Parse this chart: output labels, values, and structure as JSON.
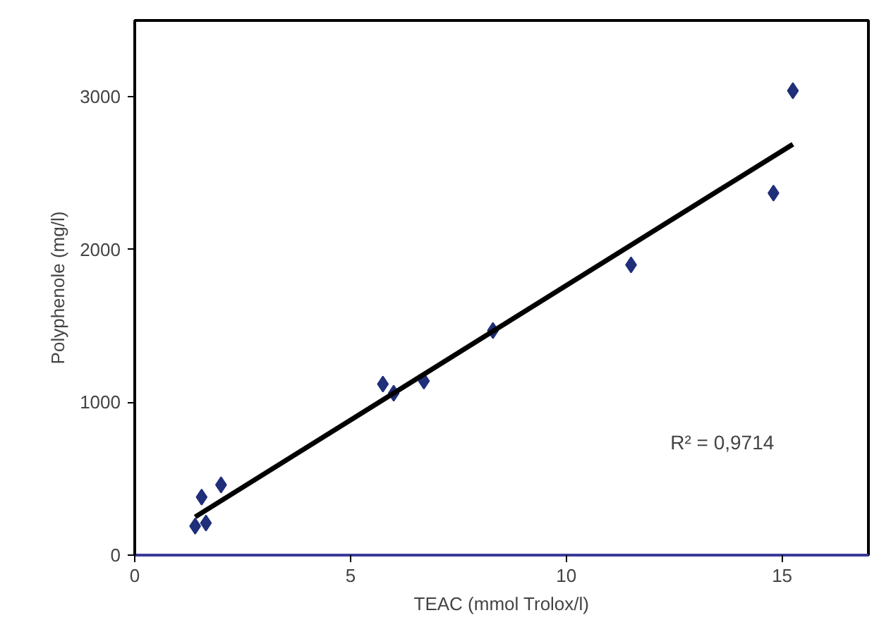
{
  "chart_data": {
    "type": "scatter",
    "xlabel": "TEAC (mmol Trolox/l)",
    "ylabel": "Polyphenole (mg/l)",
    "xlim": [
      0,
      17
    ],
    "xticks": [
      0,
      5,
      10,
      15
    ],
    "ylim": [
      0,
      3500
    ],
    "yticks": [
      0,
      1000,
      2000,
      3000
    ],
    "grid": false,
    "annotations": [
      "R² = 0,9714"
    ],
    "series": [
      {
        "marker": "diamond",
        "color": "#1f2f7a",
        "x": [
          1.4,
          1.55,
          1.65,
          2.0,
          5.75,
          6.0,
          6.7,
          8.3,
          11.5,
          14.8,
          15.25
        ],
        "values": [
          190,
          380,
          210,
          460,
          1120,
          1060,
          1140,
          1470,
          1900,
          2370,
          3040
        ]
      },
      {
        "type": "line",
        "color": "#000000",
        "x": [
          1.4,
          15.25
        ],
        "values": [
          250,
          2690
        ]
      }
    ]
  }
}
